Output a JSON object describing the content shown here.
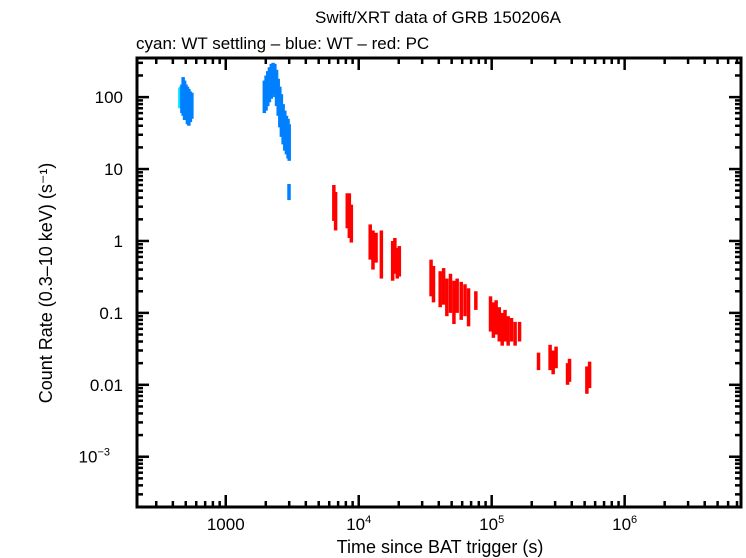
{
  "chart_data": {
    "type": "scatter",
    "title": "Swift/XRT data of GRB 150206A",
    "subtitle": "cyan: WT settling – blue: WT – red: PC",
    "xlabel": "Time since BAT trigger (s)",
    "ylabel": "Count Rate (0.3–10 keV) (s⁻¹)",
    "xscale": "log",
    "yscale": "log",
    "xlim": [
      215,
      7500000
    ],
    "ylim": [
      0.0002,
      350
    ],
    "grid": false,
    "x_ticks": [
      {
        "value": 1000,
        "label": "1000"
      },
      {
        "value": 10000,
        "label": "10",
        "exp": "4"
      },
      {
        "value": 100000,
        "label": "10",
        "exp": "5"
      },
      {
        "value": 1000000,
        "label": "10",
        "exp": "6"
      }
    ],
    "y_ticks": [
      {
        "value": 100,
        "label": "100"
      },
      {
        "value": 10,
        "label": "10"
      },
      {
        "value": 1,
        "label": "1"
      },
      {
        "value": 0.1,
        "label": "0.1"
      },
      {
        "value": 0.01,
        "label": "0.01"
      },
      {
        "value": 0.001,
        "label": "10",
        "exp": "−3"
      }
    ],
    "series": [
      {
        "name": "WT settling",
        "color": "#00e5ff",
        "points": [
          {
            "t": 452,
            "rate": 95,
            "lo": 70,
            "hi": 135
          },
          {
            "t": 458,
            "rate": 100,
            "lo": 72,
            "hi": 140
          }
        ]
      },
      {
        "name": "WT",
        "color": "#0080ff",
        "points": [
          {
            "t": 468,
            "rate": 105,
            "lo": 60,
            "hi": 150
          },
          {
            "t": 478,
            "rate": 115,
            "lo": 55,
            "hi": 190
          },
          {
            "t": 490,
            "rate": 110,
            "lo": 48,
            "hi": 170
          },
          {
            "t": 502,
            "rate": 95,
            "lo": 52,
            "hi": 150
          },
          {
            "t": 515,
            "rate": 90,
            "lo": 42,
            "hi": 140
          },
          {
            "t": 528,
            "rate": 85,
            "lo": 40,
            "hi": 130
          },
          {
            "t": 542,
            "rate": 80,
            "lo": 45,
            "hi": 120
          },
          {
            "t": 556,
            "rate": 85,
            "lo": 50,
            "hi": 115
          },
          {
            "t": 1950,
            "rate": 120,
            "lo": 60,
            "hi": 170
          },
          {
            "t": 2010,
            "rate": 140,
            "lo": 65,
            "hi": 200
          },
          {
            "t": 2070,
            "rate": 160,
            "lo": 75,
            "hi": 230
          },
          {
            "t": 2130,
            "rate": 180,
            "lo": 85,
            "hi": 260
          },
          {
            "t": 2200,
            "rate": 200,
            "lo": 95,
            "hi": 290
          },
          {
            "t": 2270,
            "rate": 210,
            "lo": 110,
            "hi": 300
          },
          {
            "t": 2340,
            "rate": 190,
            "lo": 100,
            "hi": 290
          },
          {
            "t": 2410,
            "rate": 150,
            "lo": 75,
            "hi": 240
          },
          {
            "t": 2480,
            "rate": 110,
            "lo": 55,
            "hi": 180
          },
          {
            "t": 2550,
            "rate": 80,
            "lo": 38,
            "hi": 140
          },
          {
            "t": 2620,
            "rate": 60,
            "lo": 28,
            "hi": 110
          },
          {
            "t": 2700,
            "rate": 45,
            "lo": 22,
            "hi": 80
          },
          {
            "t": 2780,
            "rate": 38,
            "lo": 18,
            "hi": 65
          },
          {
            "t": 2860,
            "rate": 32,
            "lo": 16,
            "hi": 55
          },
          {
            "t": 2940,
            "rate": 28,
            "lo": 14,
            "hi": 50
          },
          {
            "t": 3000,
            "rate": 25,
            "lo": 13,
            "hi": 42
          },
          {
            "t": 2990,
            "rate": 5,
            "lo": 3.7,
            "hi": 6.2
          }
        ]
      },
      {
        "name": "PC",
        "color": "#ff0000",
        "points": [
          {
            "t": 6500,
            "rate": 3.5,
            "lo": 1.9,
            "hi": 6.0
          },
          {
            "t": 6700,
            "rate": 3.0,
            "lo": 1.4,
            "hi": 4.8
          },
          {
            "t": 8200,
            "rate": 2.8,
            "lo": 1.5,
            "hi": 4.6
          },
          {
            "t": 8500,
            "rate": 2.3,
            "lo": 1.1,
            "hi": 4.6
          },
          {
            "t": 8800,
            "rate": 1.8,
            "lo": 0.95,
            "hi": 3.2
          },
          {
            "t": 12200,
            "rate": 1.0,
            "lo": 0.55,
            "hi": 1.7
          },
          {
            "t": 12800,
            "rate": 0.8,
            "lo": 0.4,
            "hi": 1.4
          },
          {
            "t": 13500,
            "rate": 0.9,
            "lo": 0.5,
            "hi": 1.3
          },
          {
            "t": 14800,
            "rate": 0.8,
            "lo": 0.3,
            "hi": 1.4
          },
          {
            "t": 18000,
            "rate": 0.6,
            "lo": 0.28,
            "hi": 1.0
          },
          {
            "t": 18700,
            "rate": 0.7,
            "lo": 0.35,
            "hi": 1.1
          },
          {
            "t": 19500,
            "rate": 0.5,
            "lo": 0.3,
            "hi": 0.8
          },
          {
            "t": 20200,
            "rate": 0.55,
            "lo": 0.32,
            "hi": 0.85
          },
          {
            "t": 35000,
            "rate": 0.32,
            "lo": 0.17,
            "hi": 0.55
          },
          {
            "t": 36500,
            "rate": 0.25,
            "lo": 0.14,
            "hi": 0.45
          },
          {
            "t": 41000,
            "rate": 0.22,
            "lo": 0.12,
            "hi": 0.38
          },
          {
            "t": 43500,
            "rate": 0.26,
            "lo": 0.13,
            "hi": 0.42
          },
          {
            "t": 46000,
            "rate": 0.17,
            "lo": 0.09,
            "hi": 0.3
          },
          {
            "t": 49000,
            "rate": 0.2,
            "lo": 0.1,
            "hi": 0.35
          },
          {
            "t": 52000,
            "rate": 0.13,
            "lo": 0.07,
            "hi": 0.28
          },
          {
            "t": 55000,
            "rate": 0.18,
            "lo": 0.1,
            "hi": 0.3
          },
          {
            "t": 59000,
            "rate": 0.16,
            "lo": 0.08,
            "hi": 0.27
          },
          {
            "t": 63000,
            "rate": 0.15,
            "lo": 0.09,
            "hi": 0.25
          },
          {
            "t": 67000,
            "rate": 0.12,
            "lo": 0.065,
            "hi": 0.22
          },
          {
            "t": 76000,
            "rate": 0.15,
            "lo": 0.11,
            "hi": 0.2
          },
          {
            "t": 98000,
            "rate": 0.1,
            "lo": 0.055,
            "hi": 0.17
          },
          {
            "t": 103000,
            "rate": 0.08,
            "lo": 0.045,
            "hi": 0.14
          },
          {
            "t": 108000,
            "rate": 0.09,
            "lo": 0.05,
            "hi": 0.15
          },
          {
            "t": 114000,
            "rate": 0.07,
            "lo": 0.04,
            "hi": 0.12
          },
          {
            "t": 120000,
            "rate": 0.06,
            "lo": 0.035,
            "hi": 0.1
          },
          {
            "t": 126000,
            "rate": 0.07,
            "lo": 0.04,
            "hi": 0.11
          },
          {
            "t": 133000,
            "rate": 0.055,
            "lo": 0.035,
            "hi": 0.09
          },
          {
            "t": 141000,
            "rate": 0.06,
            "lo": 0.04,
            "hi": 0.085
          },
          {
            "t": 150000,
            "rate": 0.05,
            "lo": 0.035,
            "hi": 0.075
          },
          {
            "t": 162000,
            "rate": 0.055,
            "lo": 0.04,
            "hi": 0.075
          },
          {
            "t": 225000,
            "rate": 0.021,
            "lo": 0.016,
            "hi": 0.028
          },
          {
            "t": 275000,
            "rate": 0.025,
            "lo": 0.016,
            "hi": 0.036
          },
          {
            "t": 290000,
            "rate": 0.022,
            "lo": 0.014,
            "hi": 0.03
          },
          {
            "t": 305000,
            "rate": 0.026,
            "lo": 0.017,
            "hi": 0.034
          },
          {
            "t": 372000,
            "rate": 0.014,
            "lo": 0.01,
            "hi": 0.02
          },
          {
            "t": 385000,
            "rate": 0.016,
            "lo": 0.011,
            "hi": 0.023
          },
          {
            "t": 520000,
            "rate": 0.012,
            "lo": 0.0075,
            "hi": 0.018
          },
          {
            "t": 545000,
            "rate": 0.014,
            "lo": 0.009,
            "hi": 0.021
          }
        ]
      }
    ]
  }
}
